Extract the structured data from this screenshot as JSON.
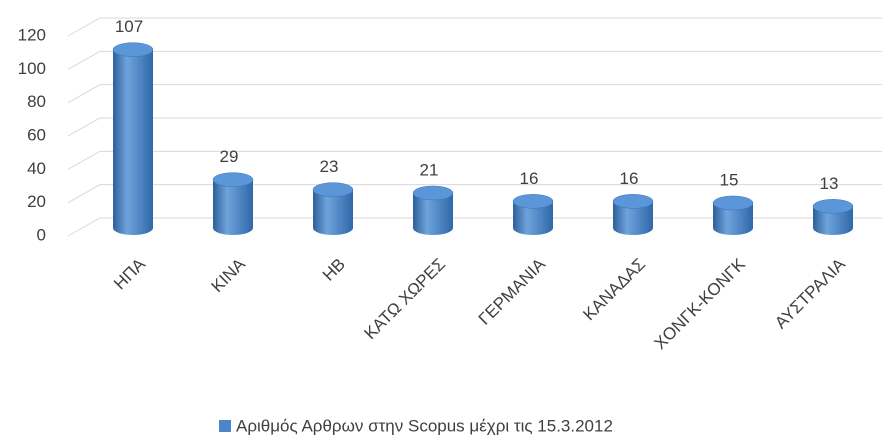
{
  "chart_data": {
    "type": "bar",
    "categories": [
      "ΗΠΑ",
      "ΚΙΝΑ",
      "ΗΒ",
      "ΚΑΤΩ ΧΩΡΕΣ",
      "ΓΕΡΜΑΝΙΑ",
      "ΚΑΝΑΔΑΣ",
      "ΧΟΝΓΚ-ΚΟΝΓΚ",
      "ΑΥΣΤΡΑΛΙΑ"
    ],
    "series": [
      {
        "name": "Αριθμός Αρθρων στην Scopus μέχρι τις 15.3.2012",
        "color": "#4a86c8",
        "values": [
          107,
          29,
          23,
          21,
          16,
          16,
          15,
          13
        ]
      }
    ],
    "ylim": [
      0,
      120
    ],
    "yticks": [
      0,
      20,
      40,
      60,
      80,
      100,
      120
    ],
    "grid": true,
    "legend": "bottom"
  }
}
